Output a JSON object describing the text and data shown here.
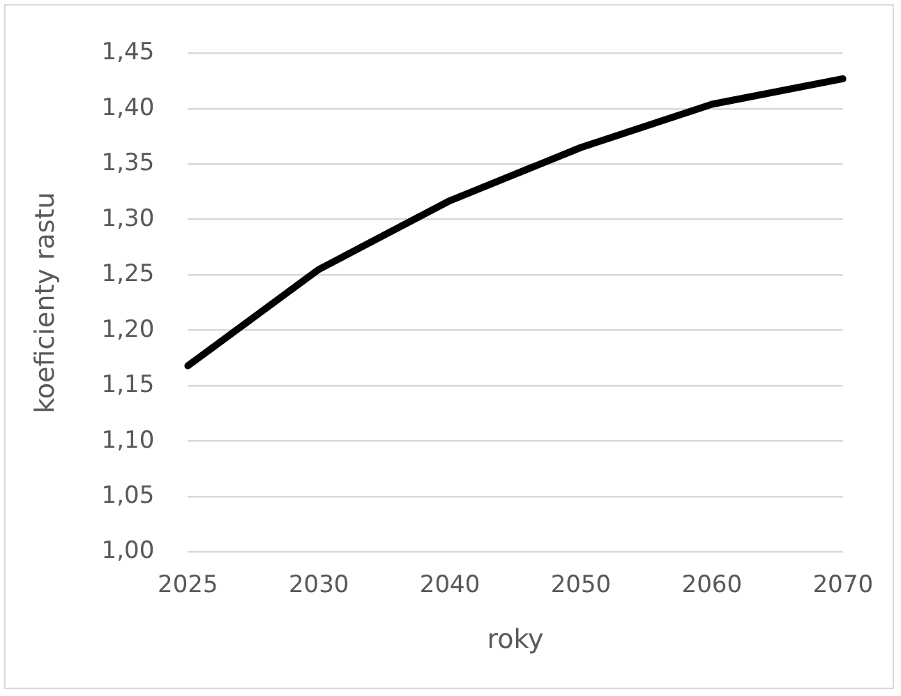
{
  "chart_data": {
    "type": "line",
    "xlabel": "roky",
    "ylabel": "koeficienty rastu",
    "categories": [
      "2025",
      "2030",
      "2040",
      "2050",
      "2060",
      "2070"
    ],
    "series": [
      {
        "color": "#000000",
        "values": [
          1.168,
          1.255,
          1.317,
          1.365,
          1.404,
          1.427
        ]
      }
    ],
    "ylim": [
      1.0,
      1.45
    ],
    "yticks": [
      {
        "value": 1.0,
        "label": "1,00"
      },
      {
        "value": 1.05,
        "label": "1,05"
      },
      {
        "value": 1.1,
        "label": "1,10"
      },
      {
        "value": 1.15,
        "label": "1,15"
      },
      {
        "value": 1.2,
        "label": "1,20"
      },
      {
        "value": 1.25,
        "label": "1,25"
      },
      {
        "value": 1.3,
        "label": "1,30"
      },
      {
        "value": 1.35,
        "label": "1,35"
      },
      {
        "value": 1.4,
        "label": "1,40"
      },
      {
        "value": 1.45,
        "label": "1,45"
      }
    ],
    "grid": "y",
    "legend": false,
    "marker": "none",
    "line_style": "solid"
  }
}
